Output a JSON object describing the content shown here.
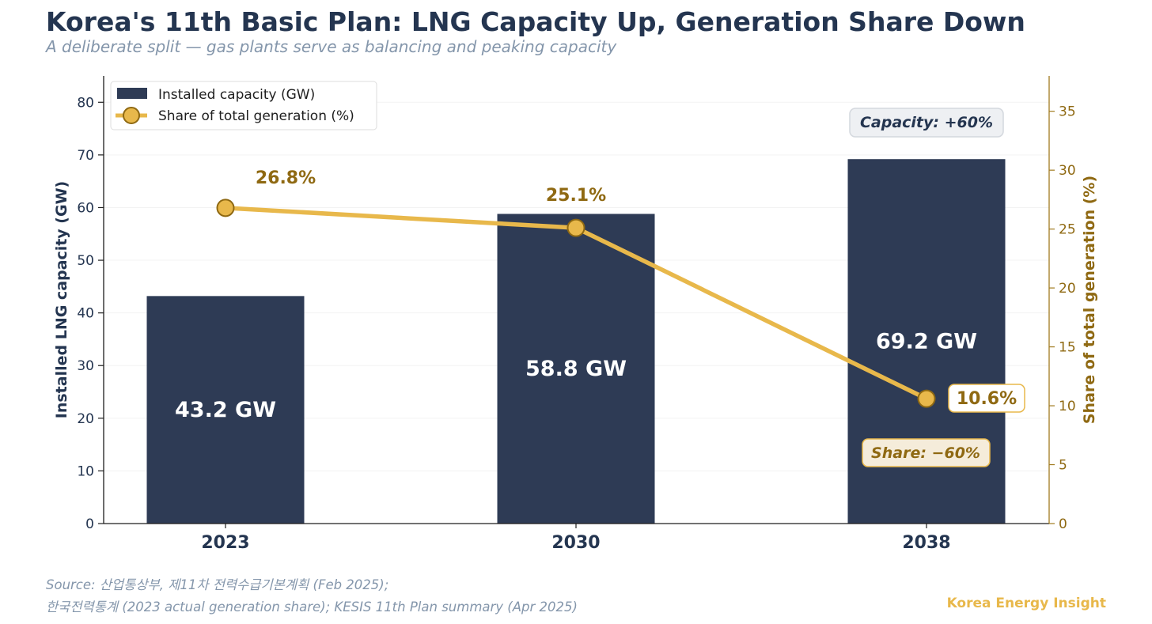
{
  "title": "Korea's 11th Basic Plan: LNG Capacity Up, Generation Share Down",
  "subtitle": "A deliberate split — gas plants serve as balancing and peaking capacity",
  "source_line1": "Source: 산업통상부, 제11차 전력수급기본계획 (Feb 2025);",
  "source_line2": "한국전력통계 (2023 actual generation share); KESIS 11th Plan summary (Apr 2025)",
  "brand": "Korea Energy Insight",
  "colors": {
    "bar": "#2e3b55",
    "line": "#e8b84b",
    "line_dark": "#8f6912",
    "text_dark": "#243550"
  },
  "chart_data": {
    "type": "bar",
    "categories": [
      "2023",
      "2030",
      "2038"
    ],
    "series": [
      {
        "name": "Installed capacity (GW)",
        "type": "bar",
        "axis": "left",
        "values": [
          43.2,
          58.8,
          69.2
        ],
        "data_labels": [
          "43.2 GW",
          "58.8 GW",
          "69.2 GW"
        ]
      },
      {
        "name": "Share of total generation (%)",
        "type": "line",
        "axis": "right",
        "values": [
          26.8,
          25.1,
          10.6
        ],
        "data_labels": [
          "26.8%",
          "25.1%",
          "10.6%"
        ]
      }
    ],
    "y_left": {
      "label": "Installed LNG capacity (GW)",
      "ylim": [
        0,
        85
      ],
      "ticks": [
        0,
        10,
        20,
        30,
        40,
        50,
        60,
        70,
        80
      ]
    },
    "y_right": {
      "label": "Share of total generation (%)",
      "ylim": [
        0,
        38
      ],
      "ticks": [
        0,
        5,
        10,
        15,
        20,
        25,
        30,
        35
      ]
    },
    "annotations": [
      "Capacity: +60%",
      "Share: −60%"
    ],
    "legend_position": "top-left",
    "grid": true
  }
}
